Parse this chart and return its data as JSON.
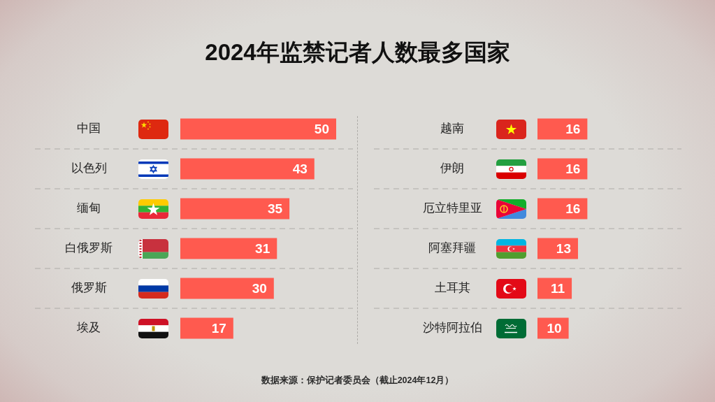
{
  "chart_data": [
    {
      "type": "bar",
      "orientation": "horizontal",
      "title": "2024年监禁记者人数最多国家",
      "categories": [
        "中国",
        "以色列",
        "缅甸",
        "白俄罗斯",
        "俄罗斯",
        "埃及"
      ],
      "values": [
        50,
        43,
        35,
        31,
        30,
        17
      ],
      "color": "#ff5a4f",
      "xlim": [
        0,
        50
      ],
      "tick_labels": "y",
      "data_labels": true,
      "grid": "y"
    },
    {
      "type": "bar",
      "orientation": "horizontal",
      "categories": [
        "越南",
        "伊朗",
        "厄立特里亚",
        "阿塞拜疆",
        "土耳其",
        "沙特阿拉伯"
      ],
      "values": [
        16,
        16,
        16,
        13,
        11,
        10
      ],
      "color": "#ff5a4f",
      "tick_labels": "y",
      "data_labels": true,
      "grid": "y",
      "annotations": [
        "数据来源：保护记者委员会（截止2024年12月）"
      ]
    }
  ]
}
